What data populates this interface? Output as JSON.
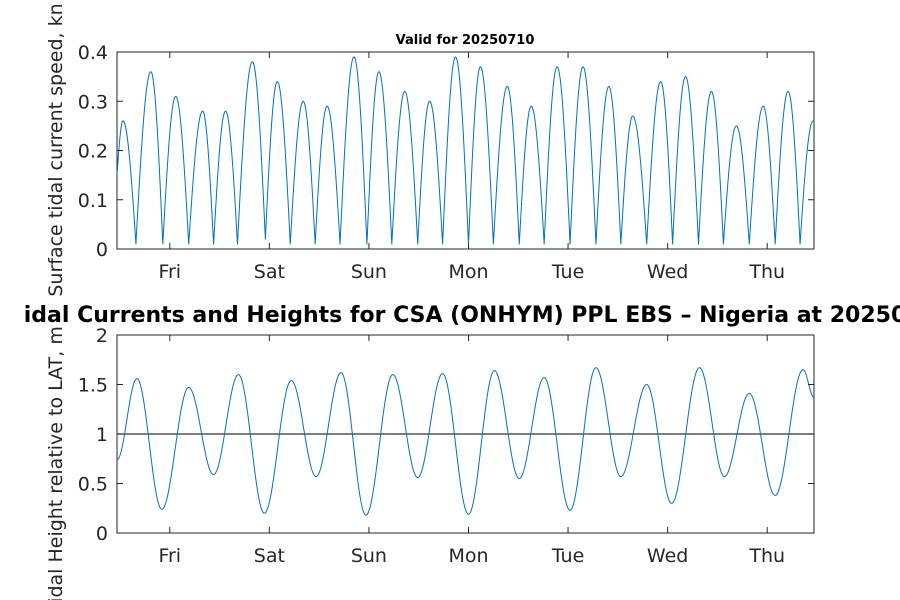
{
  "top_title": "Valid for 20250710",
  "mid_title": "idal Currents and Heights for CSA (ONHYM) PPL EBS  – Nigeria at 20250",
  "colors": {
    "series": "#0072BD",
    "reference_line": "#333333",
    "axis": "#262626"
  },
  "chart_data": [
    {
      "type": "line",
      "title": "Valid for 20250710",
      "ylabel": "Surface tidal current speed, kn",
      "xlabel": "",
      "x_tick_labels": [
        "Fri",
        "Sat",
        "Sun",
        "Mon",
        "Tue",
        "Wed",
        "Thu"
      ],
      "x_tick_positions_days": [
        0.53,
        1.53,
        2.53,
        3.53,
        4.53,
        5.53,
        6.53
      ],
      "xlim_days": [
        0,
        7
      ],
      "ylim": [
        0,
        0.4
      ],
      "yticks": [
        0,
        0.1,
        0.2,
        0.3,
        0.4
      ],
      "grid": false,
      "peaks": [
        {
          "t": 0.06,
          "v": 0.26
        },
        {
          "t": 0.34,
          "v": 0.36
        },
        {
          "t": 0.59,
          "v": 0.31
        },
        {
          "t": 0.86,
          "v": 0.28
        },
        {
          "t": 1.09,
          "v": 0.28
        },
        {
          "t": 1.36,
          "v": 0.38
        },
        {
          "t": 1.61,
          "v": 0.34
        },
        {
          "t": 1.87,
          "v": 0.3
        },
        {
          "t": 2.11,
          "v": 0.29
        },
        {
          "t": 2.38,
          "v": 0.39
        },
        {
          "t": 2.63,
          "v": 0.36
        },
        {
          "t": 2.89,
          "v": 0.32
        },
        {
          "t": 3.14,
          "v": 0.3
        },
        {
          "t": 3.4,
          "v": 0.39
        },
        {
          "t": 3.65,
          "v": 0.37
        },
        {
          "t": 3.92,
          "v": 0.33
        },
        {
          "t": 4.16,
          "v": 0.29
        },
        {
          "t": 4.42,
          "v": 0.37
        },
        {
          "t": 4.68,
          "v": 0.37
        },
        {
          "t": 4.94,
          "v": 0.33
        },
        {
          "t": 5.18,
          "v": 0.27
        },
        {
          "t": 5.46,
          "v": 0.34
        },
        {
          "t": 5.71,
          "v": 0.35
        },
        {
          "t": 5.97,
          "v": 0.32
        },
        {
          "t": 6.22,
          "v": 0.25
        },
        {
          "t": 6.49,
          "v": 0.29
        },
        {
          "t": 6.74,
          "v": 0.32
        },
        {
          "t": 6.99,
          "v": 0.26
        }
      ],
      "troughs": [
        {
          "t": 0.0,
          "v": 0.15
        },
        {
          "t": 0.19,
          "v": 0.01
        },
        {
          "t": 0.46,
          "v": 0.01
        },
        {
          "t": 0.72,
          "v": 0.01
        },
        {
          "t": 0.97,
          "v": 0.01
        },
        {
          "t": 1.21,
          "v": 0.01
        },
        {
          "t": 1.49,
          "v": 0.02
        },
        {
          "t": 1.74,
          "v": 0.01
        },
        {
          "t": 1.99,
          "v": 0.01
        },
        {
          "t": 2.24,
          "v": 0.01
        },
        {
          "t": 2.51,
          "v": 0.01
        },
        {
          "t": 2.76,
          "v": 0.01
        },
        {
          "t": 3.02,
          "v": 0.01
        },
        {
          "t": 3.27,
          "v": 0.01
        },
        {
          "t": 3.53,
          "v": 0.01
        },
        {
          "t": 3.78,
          "v": 0.01
        },
        {
          "t": 4.04,
          "v": 0.01
        },
        {
          "t": 4.29,
          "v": 0.01
        },
        {
          "t": 4.55,
          "v": 0.01
        },
        {
          "t": 4.81,
          "v": 0.01
        },
        {
          "t": 5.06,
          "v": 0.01
        },
        {
          "t": 5.32,
          "v": 0.01
        },
        {
          "t": 5.58,
          "v": 0.01
        },
        {
          "t": 5.84,
          "v": 0.01
        },
        {
          "t": 6.09,
          "v": 0.01
        },
        {
          "t": 6.35,
          "v": 0.01
        },
        {
          "t": 6.61,
          "v": 0.01
        },
        {
          "t": 6.86,
          "v": 0.01
        }
      ]
    },
    {
      "type": "line",
      "title": "idal Currents and Heights for CSA (ONHYM) PPL EBS  – Nigeria at 20250",
      "ylabel": "Tidal Height relative to LAT, m",
      "xlabel": "",
      "x_tick_labels": [
        "Fri",
        "Sat",
        "Sun",
        "Mon",
        "Tue",
        "Wed",
        "Thu"
      ],
      "x_tick_positions_days": [
        0.53,
        1.53,
        2.53,
        3.53,
        4.53,
        5.53,
        6.53
      ],
      "xlim_days": [
        0,
        7
      ],
      "ylim": [
        0,
        2
      ],
      "yticks": [
        0,
        0.5,
        1,
        1.5,
        2
      ],
      "grid": false,
      "reference_line": 1,
      "extrema": [
        {
          "t": 0.0,
          "v": 0.74
        },
        {
          "t": 0.2,
          "v": 1.56
        },
        {
          "t": 0.45,
          "v": 0.24
        },
        {
          "t": 0.72,
          "v": 1.47
        },
        {
          "t": 0.97,
          "v": 0.59
        },
        {
          "t": 1.22,
          "v": 1.6
        },
        {
          "t": 1.48,
          "v": 0.2
        },
        {
          "t": 1.75,
          "v": 1.54
        },
        {
          "t": 2.0,
          "v": 0.57
        },
        {
          "t": 2.25,
          "v": 1.62
        },
        {
          "t": 2.5,
          "v": 0.18
        },
        {
          "t": 2.77,
          "v": 1.6
        },
        {
          "t": 3.02,
          "v": 0.56
        },
        {
          "t": 3.27,
          "v": 1.61
        },
        {
          "t": 3.53,
          "v": 0.19
        },
        {
          "t": 3.79,
          "v": 1.64
        },
        {
          "t": 4.04,
          "v": 0.55
        },
        {
          "t": 4.29,
          "v": 1.57
        },
        {
          "t": 4.55,
          "v": 0.23
        },
        {
          "t": 4.81,
          "v": 1.67
        },
        {
          "t": 5.06,
          "v": 0.57
        },
        {
          "t": 5.32,
          "v": 1.5
        },
        {
          "t": 5.57,
          "v": 0.3
        },
        {
          "t": 5.85,
          "v": 1.67
        },
        {
          "t": 6.1,
          "v": 0.57
        },
        {
          "t": 6.35,
          "v": 1.41
        },
        {
          "t": 6.61,
          "v": 0.38
        },
        {
          "t": 6.89,
          "v": 1.65
        },
        {
          "t": 7.0,
          "v": 1.37
        }
      ]
    }
  ]
}
